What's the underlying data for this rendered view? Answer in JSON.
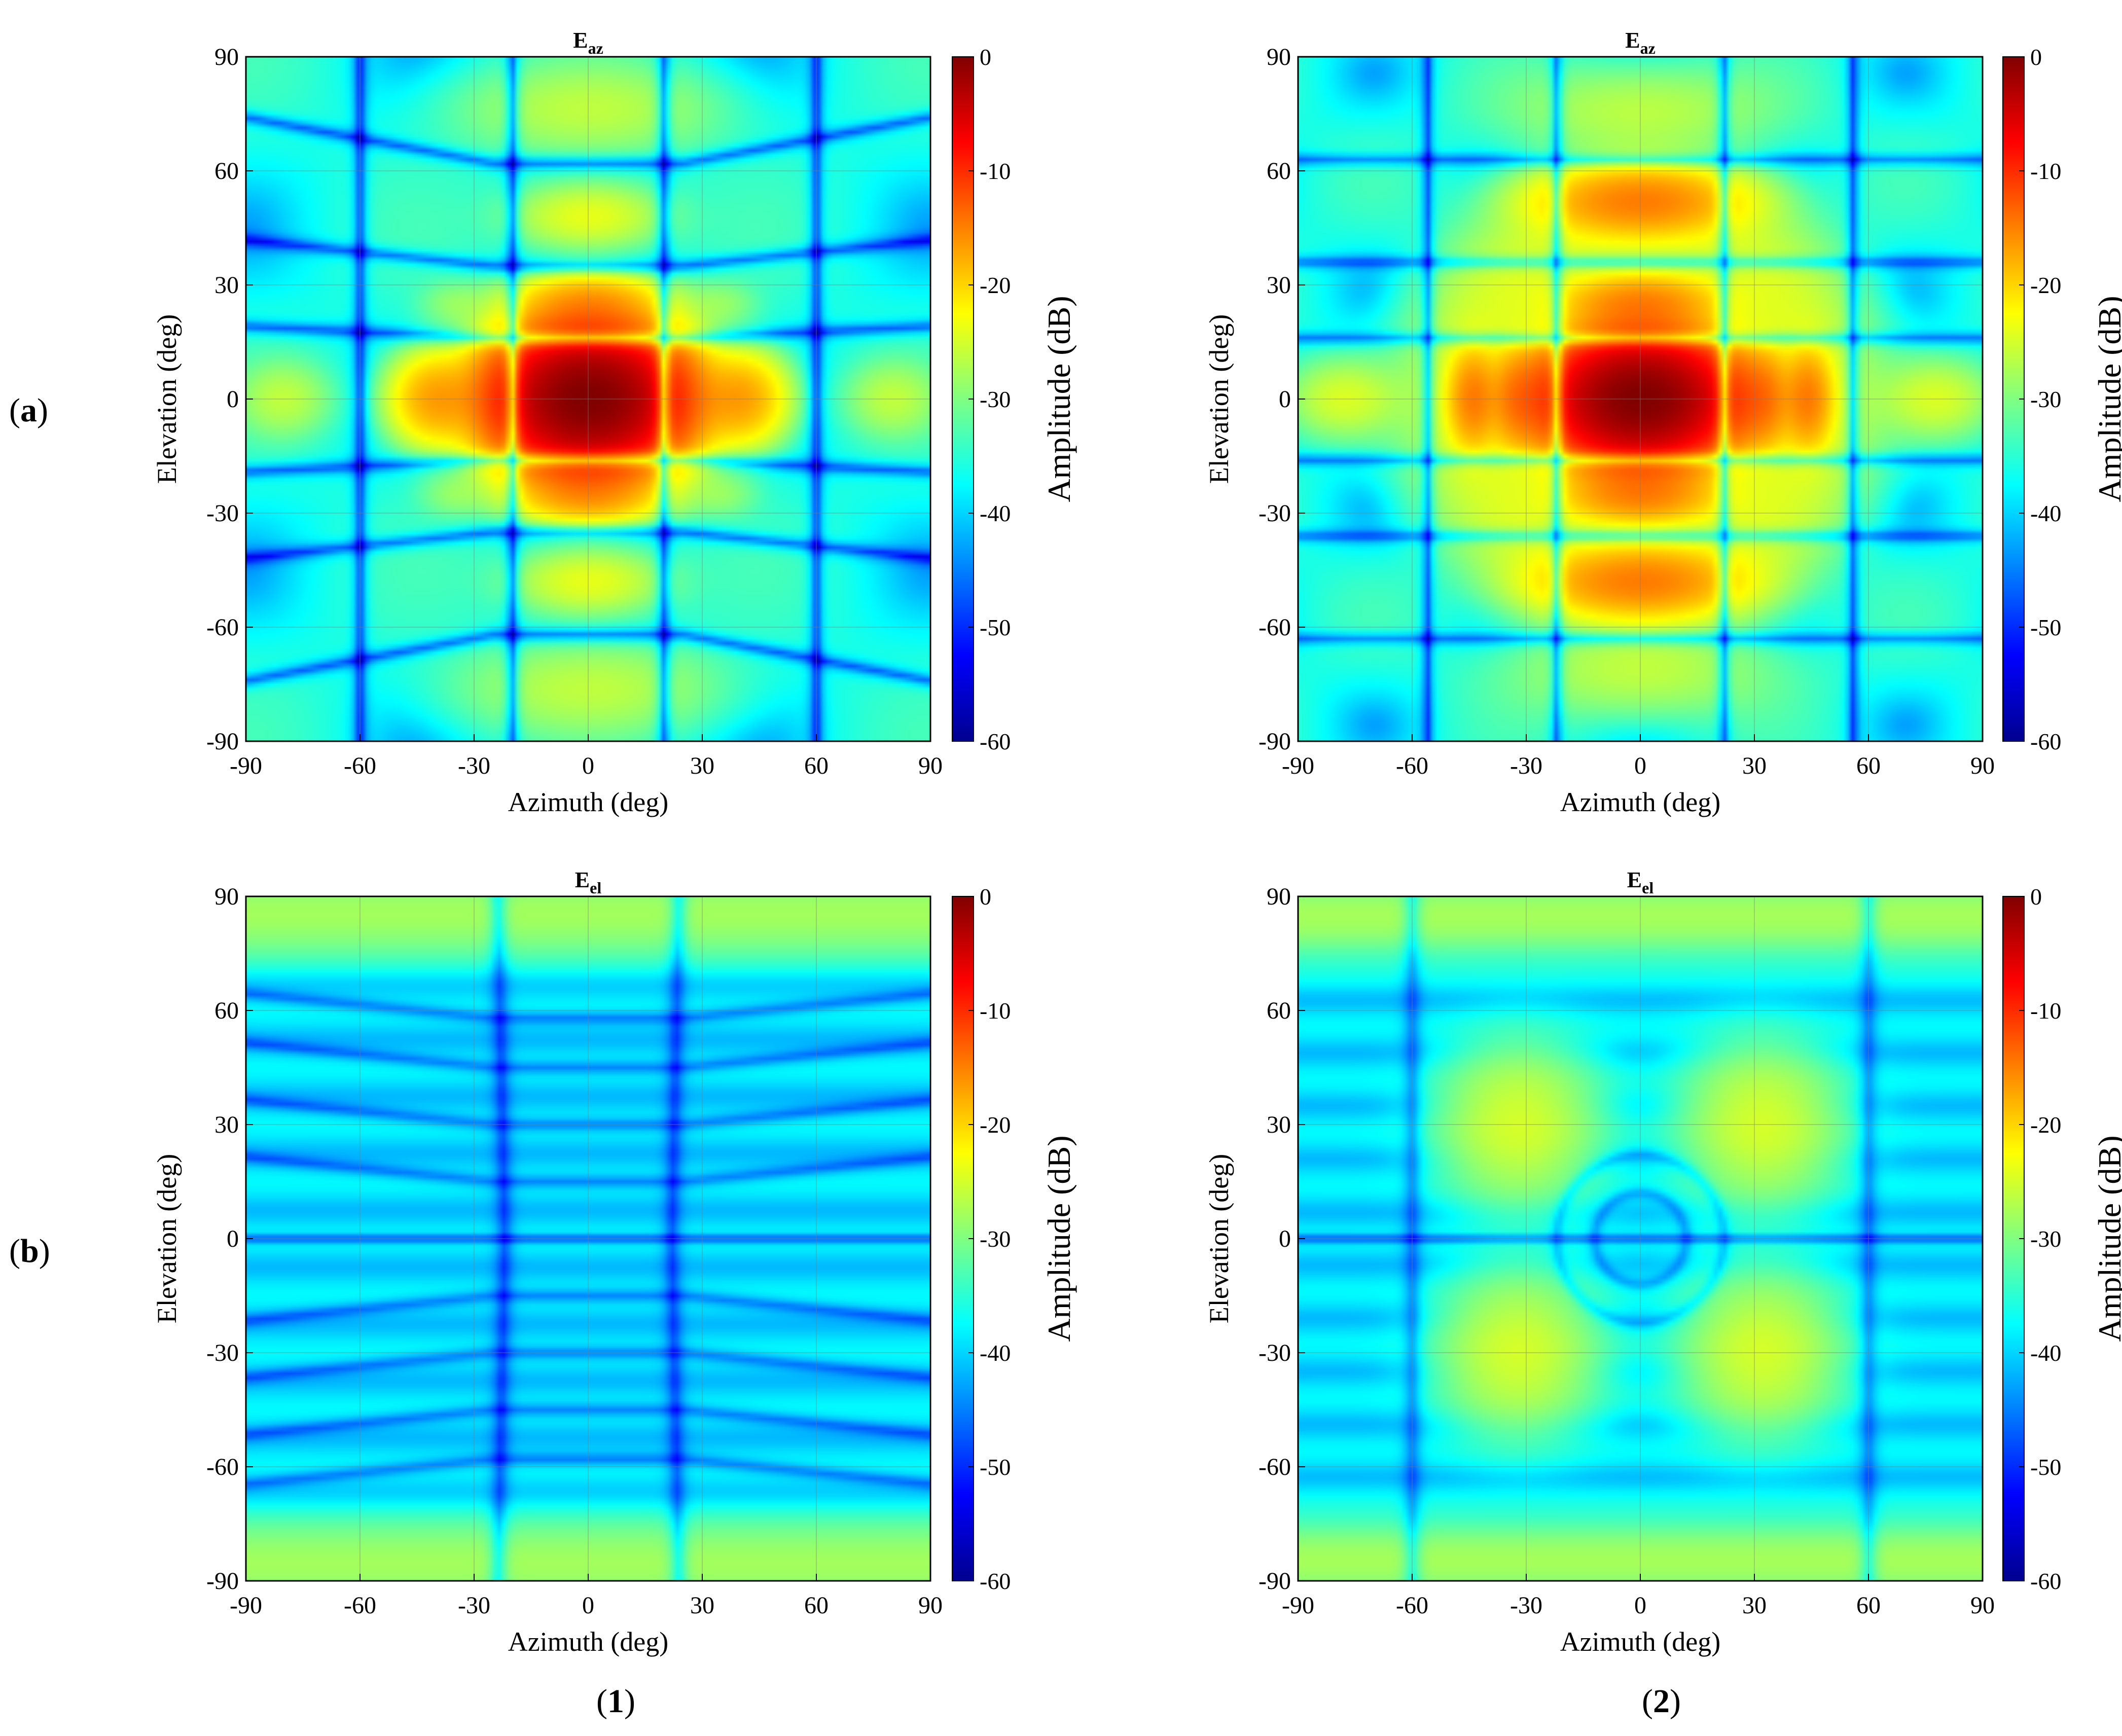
{
  "figure": {
    "row_labels": [
      {
        "open": "(",
        "letter": "a",
        "close": ")"
      },
      {
        "open": "(",
        "letter": "b",
        "close": ")"
      }
    ],
    "col_labels": [
      {
        "open": "(",
        "digit": "1",
        "close": ")"
      },
      {
        "open": "(",
        "digit": "2",
        "close": ")"
      }
    ]
  },
  "colorbar": {
    "label": "Amplitude (dB)",
    "range": [
      -60,
      0
    ],
    "ticks": [
      "0",
      "-10",
      "-20",
      "-30",
      "-40",
      "-50",
      "-60"
    ],
    "colormap": "jet",
    "stops": [
      "#00008f",
      "#0000ff",
      "#0080ff",
      "#00ffff",
      "#80ff80",
      "#ffff00",
      "#ff8000",
      "#ff0000",
      "#800000"
    ]
  },
  "chart_data": [
    {
      "type": "heatmap",
      "panel": "(a)(1)",
      "title": {
        "main": "E",
        "sub": "az"
      },
      "xlabel": "Azimuth (deg)",
      "ylabel": "Elevation (deg)",
      "xlim": [
        -90,
        90
      ],
      "ylim": [
        -90,
        90
      ],
      "xticks": [
        "-90",
        "-60",
        "-30",
        "0",
        "30",
        "60",
        "90"
      ],
      "yticks": [
        "90",
        "60",
        "30",
        "0",
        "-30",
        "-60",
        "-90"
      ],
      "grid": true,
      "values_db": {
        "main_beam_peak": 0,
        "first_az_sidelobes_at_pm40deg": -17,
        "far_az_lobes_at_pm80deg": -27,
        "first_el_sidelobes_at_pm25deg": -17,
        "second_el_lobes_at_pm48deg": -24,
        "far_el_lobes_at_pm75deg": -27,
        "nulls": -55
      }
    },
    {
      "type": "heatmap",
      "panel": "(a)(2)",
      "title": {
        "main": "E",
        "sub": "az"
      },
      "xlabel": "Azimuth (deg)",
      "ylabel": "Elevation (deg)",
      "xlim": [
        -90,
        90
      ],
      "ylim": [
        -90,
        90
      ],
      "xticks": [
        "-90",
        "-60",
        "-30",
        "0",
        "30",
        "60",
        "90"
      ],
      "yticks": [
        "90",
        "60",
        "30",
        "0",
        "-30",
        "-60",
        "-90"
      ],
      "grid": true,
      "values_db": {
        "main_beam_peak": 0,
        "first_az_sidelobes_at_pm38deg": -15,
        "far_az_lobes_at_pm78deg": -26,
        "el_sidelobes_at_pm25deg": -16,
        "el_lobes_at_pm48deg": -16,
        "nulls": -58
      }
    },
    {
      "type": "heatmap",
      "panel": "(b)(1)",
      "title": {
        "main": "E",
        "sub": "el"
      },
      "xlabel": "Azimuth (deg)",
      "ylabel": "Elevation (deg)",
      "xlim": [
        -90,
        90
      ],
      "ylim": [
        -90,
        90
      ],
      "xticks": [
        "-90",
        "-60",
        "-30",
        "0",
        "30",
        "60",
        "90"
      ],
      "yticks": [
        "90",
        "60",
        "30",
        "0",
        "-30",
        "-60",
        "-90"
      ],
      "grid": true,
      "values_db": {
        "background": -42,
        "edge_lobes_at_pm85deg_elevation": -28,
        "null_along_zero_elevation": -60
      }
    },
    {
      "type": "heatmap",
      "panel": "(b)(2)",
      "title": {
        "main": "E",
        "sub": "el"
      },
      "xlabel": "Azimuth (deg)",
      "ylabel": "Elevation (deg)",
      "xlim": [
        -90,
        90
      ],
      "ylim": [
        -90,
        90
      ],
      "xticks": [
        "-90",
        "-60",
        "-30",
        "0",
        "30",
        "60",
        "90"
      ],
      "yticks": [
        "90",
        "60",
        "30",
        "0",
        "-30",
        "-60",
        "-90"
      ],
      "grid": true,
      "values_db": {
        "background": -42,
        "four_diagonal_lobes_at_pm32deg_az_pm30deg_el": -25,
        "edge_lobes_at_pm85deg_elevation": -28,
        "null_along_zero_elevation": -60
      }
    }
  ]
}
